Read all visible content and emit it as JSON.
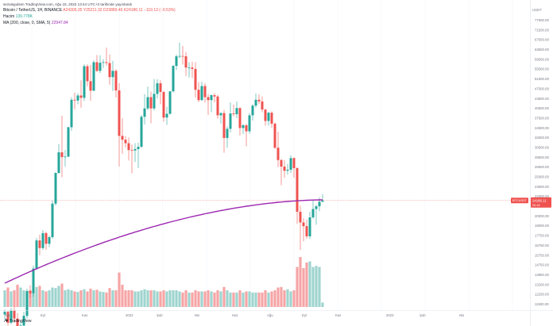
{
  "header": {
    "published": "sezaisgulsen TradingView.com, Ağu 15, 2022 13:44 UTC+3 tarihinde yayınlandı",
    "symbol_line": {
      "title": "Bitcoin / TetherUS, 1H, BINANCE",
      "open": "A24305.35",
      "high": "Y25211.32",
      "low": "D23889.46",
      "close": "K24186.11",
      "change": "−119.13 (−0.53%)"
    },
    "volume_line": {
      "label": "Hacim",
      "value": "139.778K"
    },
    "ma_line": {
      "label": "MA (200, close, 0, SMA, 5)",
      "value": "22947.84"
    }
  },
  "price_axis": {
    "currency": "USDT",
    "ticks": [
      "77500.00",
      "71500.00",
      "67500.00",
      "63500.00",
      "59500.00",
      "55500.00",
      "51500.00",
      "47500.00",
      "43500.00",
      "40500.00",
      "37500.00",
      "34500.00",
      "32500.00",
      "30500.00",
      "28500.00",
      "26500.00",
      "25000.00",
      "23500.00",
      "22000.00",
      "21000.00",
      "20000.00",
      "19000.00",
      "17750.00",
      "16750.00",
      "15750.00",
      "14750.00",
      "13850.00",
      "13200.00",
      "12250.00",
      "11500.00"
    ]
  },
  "price_marker": {
    "countdown": "00:16",
    "value": "24186.11",
    "symbol": "BTCUSDT"
  },
  "time_axis": [
    "Ağu",
    "Eyl",
    "Kas",
    "2022",
    "Şub",
    "Nis",
    "Haz",
    "Ağu",
    "Eyl",
    "Kas",
    "2023",
    "Şub",
    "Nis"
  ],
  "logo_text": "TradingView",
  "colors": {
    "up": "#26a69a",
    "down": "#ef5350",
    "ma": "#9c27b0",
    "vol_up": "#9fd4cf",
    "vol_down": "#f6a5a6"
  },
  "chart_data": {
    "type": "candlestick",
    "ma_period": 200,
    "ohlc": [
      [
        11600,
        12000,
        11200,
        11800
      ],
      [
        11800,
        11900,
        10800,
        11000
      ],
      [
        11000,
        12100,
        10900,
        11900
      ],
      [
        11900,
        12200,
        11000,
        11300
      ],
      [
        11300,
        11700,
        10100,
        10500
      ],
      [
        10500,
        11100,
        10300,
        10800
      ],
      [
        10800,
        11800,
        10700,
        11500
      ],
      [
        11500,
        13700,
        11300,
        13500
      ],
      [
        13500,
        14000,
        12900,
        13300
      ],
      [
        13300,
        15900,
        13000,
        15600
      ],
      [
        15600,
        19000,
        15500,
        18700
      ],
      [
        18700,
        19400,
        17000,
        17800
      ],
      [
        17800,
        20000,
        17600,
        19600
      ],
      [
        19600,
        19800,
        17600,
        18300
      ],
      [
        18300,
        19300,
        17900,
        19100
      ],
      [
        19100,
        24200,
        18900,
        23700
      ],
      [
        23700,
        29000,
        23400,
        28900
      ],
      [
        28900,
        34800,
        28700,
        33000
      ],
      [
        33000,
        41800,
        28100,
        32000
      ],
      [
        32000,
        33500,
        30100,
        32100
      ],
      [
        32100,
        38900,
        32000,
        38800
      ],
      [
        38800,
        47000,
        37900,
        46300
      ],
      [
        46300,
        48500,
        43600,
        46100
      ],
      [
        46100,
        48300,
        45000,
        47600
      ],
      [
        47600,
        52500,
        44000,
        46900
      ],
      [
        46900,
        58300,
        46000,
        57500
      ],
      [
        57500,
        58200,
        50500,
        52200
      ],
      [
        52200,
        58000,
        46000,
        49100
      ],
      [
        49100,
        59700,
        49000,
        59000
      ],
      [
        59000,
        61800,
        55400,
        55800
      ],
      [
        55800,
        61700,
        55000,
        58800
      ],
      [
        58800,
        60100,
        56800,
        59000
      ],
      [
        59000,
        64800,
        57700,
        58700
      ],
      [
        58700,
        62000,
        51000,
        53600
      ],
      [
        53600,
        59500,
        49000,
        55800
      ],
      [
        55800,
        56400,
        47000,
        49200
      ],
      [
        49200,
        51500,
        30100,
        36700
      ],
      [
        36700,
        41100,
        32700,
        35800
      ],
      [
        35800,
        36600,
        34100,
        35000
      ],
      [
        35000,
        36300,
        31300,
        33500
      ],
      [
        33500,
        34700,
        28800,
        33400
      ],
      [
        33400,
        35000,
        31000,
        33700
      ],
      [
        33700,
        35100,
        29800,
        34200
      ],
      [
        34200,
        42000,
        34000,
        41500
      ],
      [
        41500,
        48000,
        39500,
        43800
      ],
      [
        43800,
        50400,
        43300,
        47100
      ],
      [
        47100,
        48800,
        39800,
        43800
      ],
      [
        43800,
        52900,
        43200,
        48100
      ],
      [
        48100,
        52900,
        46700,
        51500
      ],
      [
        51500,
        52500,
        45000,
        48700
      ],
      [
        48700,
        49000,
        40200,
        41300
      ],
      [
        41300,
        44300,
        39400,
        42300
      ],
      [
        42300,
        49000,
        42100,
        48900
      ],
      [
        48900,
        58000,
        48500,
        57600
      ],
      [
        57600,
        62000,
        56100,
        61300
      ],
      [
        61300,
        67000,
        60500,
        61400
      ],
      [
        61400,
        65500,
        58100,
        61300
      ],
      [
        61300,
        63000,
        54000,
        57000
      ],
      [
        57000,
        59000,
        53500,
        57000
      ],
      [
        57000,
        59200,
        53300,
        56500
      ],
      [
        56500,
        59000,
        47000,
        49400
      ],
      [
        49400,
        51900,
        45600,
        46200
      ],
      [
        46200,
        52000,
        46000,
        50600
      ],
      [
        50600,
        51500,
        45500,
        47100
      ],
      [
        47100,
        48000,
        42000,
        46200
      ],
      [
        46200,
        47900,
        42800,
        47700
      ],
      [
        47700,
        48300,
        45500,
        47300
      ],
      [
        47300,
        47800,
        41000,
        41900
      ],
      [
        41900,
        42700,
        39700,
        42500
      ],
      [
        42500,
        43400,
        32900,
        36200
      ],
      [
        36200,
        39000,
        34000,
        38400
      ],
      [
        38400,
        45500,
        37500,
        42400
      ],
      [
        42400,
        44900,
        41600,
        42200
      ],
      [
        42200,
        45800,
        41100,
        43900
      ],
      [
        43900,
        44100,
        36800,
        38600
      ],
      [
        38600,
        39600,
        37100,
        39300
      ],
      [
        39300,
        39600,
        34300,
        37800
      ],
      [
        37800,
        42500,
        37200,
        41900
      ],
      [
        41900,
        45000,
        40500,
        44600
      ],
      [
        44600,
        48200,
        44000,
        46300
      ],
      [
        46300,
        48000,
        45000,
        45800
      ],
      [
        45800,
        47300,
        42700,
        43500
      ],
      [
        43500,
        43600,
        39200,
        40400
      ],
      [
        40400,
        42900,
        39200,
        42600
      ],
      [
        42600,
        43000,
        38700,
        39700
      ],
      [
        39700,
        40000,
        33700,
        34000
      ],
      [
        34000,
        37700,
        30000,
        31400
      ],
      [
        31400,
        31600,
        26700,
        30100
      ],
      [
        30100,
        31400,
        28000,
        29300
      ],
      [
        29300,
        30600,
        28600,
        29500
      ],
      [
        29500,
        32400,
        28900,
        31800
      ],
      [
        31800,
        31900,
        28000,
        29800
      ],
      [
        29800,
        30000,
        20800,
        22500
      ],
      [
        22500,
        23400,
        17600,
        21000
      ],
      [
        21000,
        21600,
        18600,
        20500
      ],
      [
        20500,
        21400,
        18900,
        19200
      ],
      [
        19200,
        22500,
        18900,
        21700
      ],
      [
        21700,
        24300,
        21500,
        22900
      ],
      [
        22900,
        23500,
        20700,
        23300
      ],
      [
        23300,
        24700,
        22600,
        24000
      ],
      [
        24000,
        25200,
        23900,
        24186
      ]
    ],
    "volume_relative": [
      0.3,
      0.35,
      0.28,
      0.3,
      0.4,
      0.35,
      0.3,
      0.28,
      0.3,
      0.32,
      0.36,
      0.38,
      0.3,
      0.28,
      0.3,
      0.35,
      0.34,
      0.38,
      0.42,
      0.3,
      0.32,
      0.3,
      0.28,
      0.27,
      0.3,
      0.32,
      0.28,
      0.33,
      0.3,
      0.31,
      0.28,
      0.27,
      0.26,
      0.34,
      0.3,
      0.3,
      0.62,
      0.4,
      0.3,
      0.3,
      0.3,
      0.28,
      0.28,
      0.3,
      0.32,
      0.3,
      0.3,
      0.3,
      0.28,
      0.28,
      0.3,
      0.28,
      0.3,
      0.3,
      0.3,
      0.28,
      0.26,
      0.3,
      0.26,
      0.26,
      0.3,
      0.28,
      0.28,
      0.28,
      0.3,
      0.28,
      0.26,
      0.3,
      0.28,
      0.36,
      0.3,
      0.26,
      0.26,
      0.26,
      0.3,
      0.26,
      0.28,
      0.28,
      0.26,
      0.26,
      0.26,
      0.26,
      0.3,
      0.26,
      0.28,
      0.3,
      0.35,
      0.36,
      0.3,
      0.32,
      0.28,
      0.3,
      0.72,
      0.9,
      0.7,
      0.8,
      0.82,
      0.72,
      0.74,
      0.72,
      0.08
    ]
  }
}
